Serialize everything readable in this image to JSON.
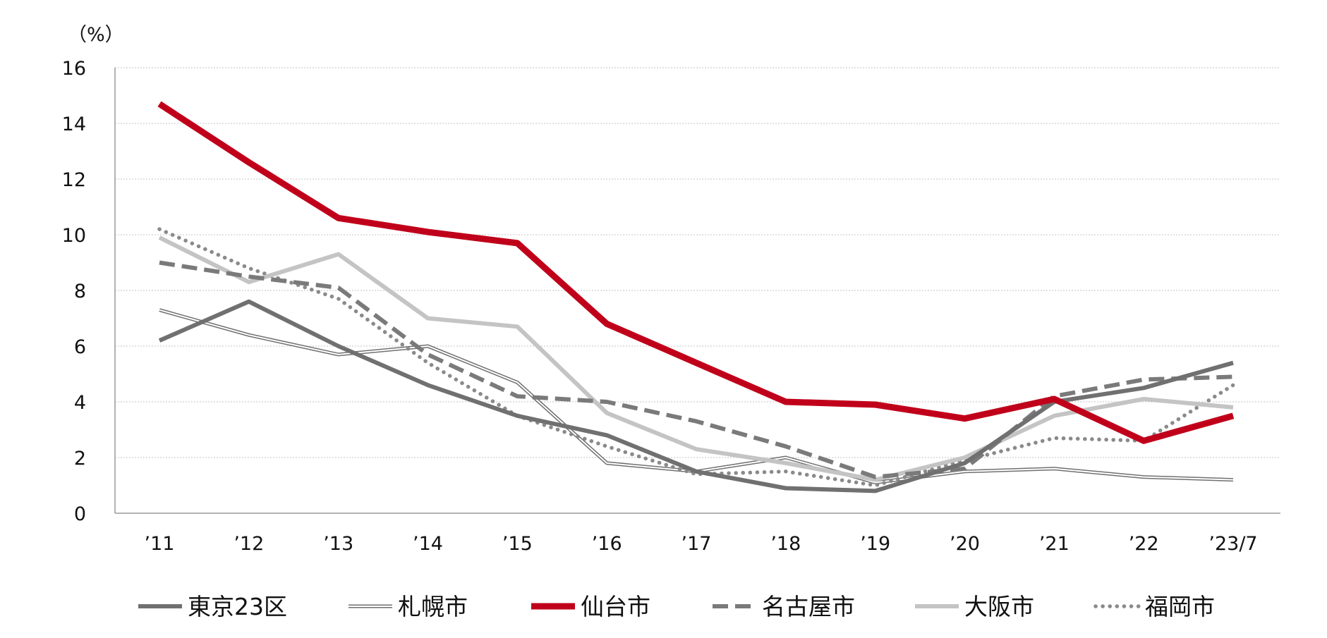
{
  "chart_data": {
    "type": "line",
    "y_unit_label": "（%）",
    "categories": [
      "’11",
      "’12",
      "’13",
      "’14",
      "’15",
      "’16",
      "’17",
      "’18",
      "’19",
      "’20",
      "’21",
      "’22",
      "’23/7"
    ],
    "ylim": [
      0,
      16
    ],
    "yticks": [
      0,
      2,
      4,
      6,
      8,
      10,
      12,
      14,
      16
    ],
    "grid": "horizontal dotted",
    "legend_position": "bottom",
    "series": [
      {
        "name": "東京23区",
        "style": "solid-thick",
        "color": "#707070",
        "values": [
          6.2,
          7.6,
          6.0,
          4.6,
          3.5,
          2.8,
          1.5,
          0.9,
          0.8,
          1.8,
          4.0,
          4.5,
          5.4
        ]
      },
      {
        "name": "札幌市",
        "style": "double-line",
        "color": "#707070",
        "values": [
          7.3,
          6.4,
          5.7,
          6.0,
          4.7,
          1.8,
          1.5,
          2.0,
          1.1,
          1.5,
          1.6,
          1.3,
          1.2
        ]
      },
      {
        "name": "仙台市",
        "style": "solid-bold",
        "color": "#c0001a",
        "values": [
          14.7,
          12.6,
          10.6,
          10.1,
          9.7,
          6.8,
          5.4,
          4.0,
          3.9,
          3.4,
          4.1,
          2.6,
          3.5
        ]
      },
      {
        "name": "名古屋市",
        "style": "dashed",
        "color": "#7a7a7a",
        "values": [
          9.0,
          8.5,
          8.1,
          5.7,
          4.2,
          4.0,
          3.3,
          2.4,
          1.3,
          1.6,
          4.2,
          4.8,
          4.9
        ]
      },
      {
        "name": "大阪市",
        "style": "solid-light",
        "color": "#c4c4c4",
        "values": [
          9.9,
          8.3,
          9.3,
          7.0,
          6.7,
          3.6,
          2.3,
          1.8,
          1.2,
          2.0,
          3.5,
          4.1,
          3.8
        ]
      },
      {
        "name": "福岡市",
        "style": "dotted",
        "color": "#8a8a8a",
        "values": [
          10.2,
          8.8,
          7.7,
          5.4,
          3.5,
          2.4,
          1.4,
          1.5,
          1.0,
          1.9,
          2.7,
          2.6,
          4.6
        ]
      }
    ]
  }
}
